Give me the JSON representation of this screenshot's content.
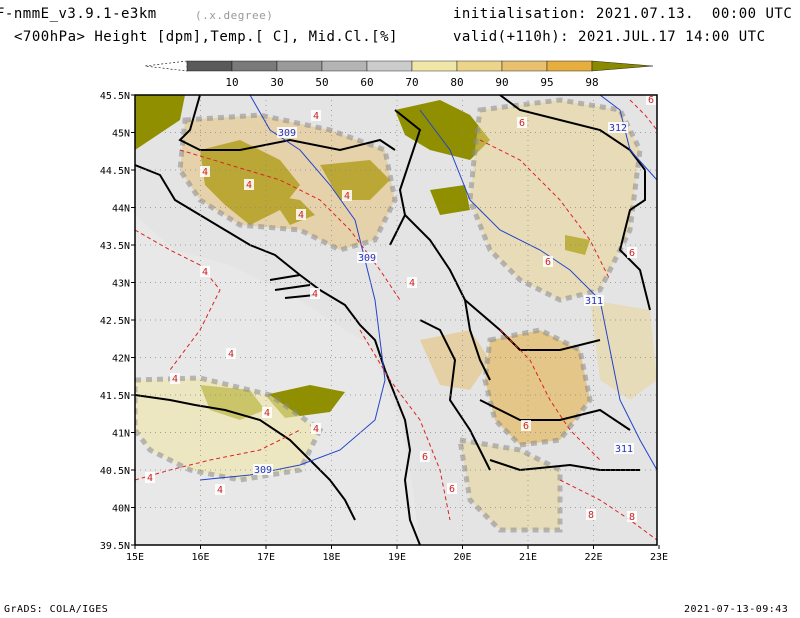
{
  "header": {
    "model_line": "F-nmmE_v3.9.1-e3km",
    "units_hint": "(.x.degree)",
    "field_line": "<700hPa> Height [dpm],Temp.[ C], Mid.Cl.[%]",
    "init_line": "initialisation: 2021.07.13.  00:00 UTC",
    "valid_line": "valid(+110h): 2021.JUL.17 14:00 UTC"
  },
  "colorbar": {
    "labels": [
      "10",
      "30",
      "50",
      "60",
      "70",
      "80",
      "90",
      "95",
      "98"
    ],
    "colors": [
      "#5a5a5a",
      "#7a7a7a",
      "#9a9a9a",
      "#b4b4b4",
      "#cccccc",
      "#f0e6a8",
      "#ecd48a",
      "#e8c070",
      "#e6ae3c",
      "#8a8a00"
    ]
  },
  "map": {
    "lat_labels": [
      "45.5N",
      "45N",
      "44.5N",
      "44N",
      "43.5N",
      "43N",
      "42.5N",
      "42N",
      "41.5N",
      "41N",
      "40.5N",
      "40N",
      "39.5N"
    ],
    "lon_labels": [
      "15E",
      "16E",
      "17E",
      "18E",
      "19E",
      "20E",
      "21E",
      "22E",
      "23E"
    ],
    "height_labels": [
      "309",
      "312",
      "309",
      "311",
      "311",
      "309"
    ],
    "temp_labels": [
      "4",
      "6",
      "8"
    ]
  },
  "footer": {
    "left": "GrADS: COLA/IGES",
    "right": "2021-07-13-09:43"
  }
}
